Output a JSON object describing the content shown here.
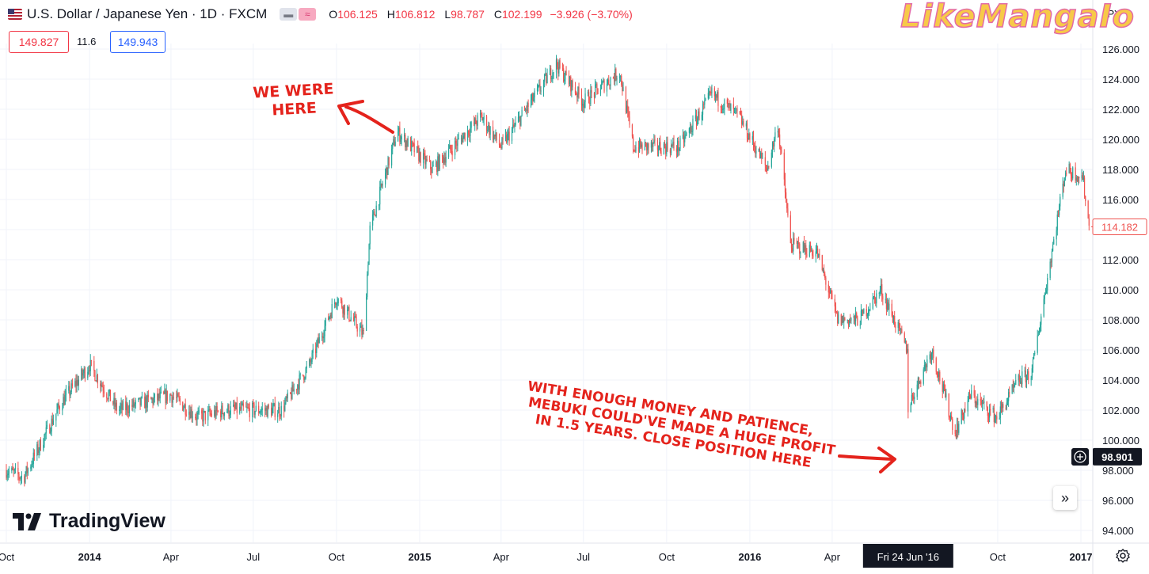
{
  "header": {
    "symbol": "U.S. Dollar / Japanese Yen · 1D · FXCM",
    "ohlc": {
      "o_label": "O",
      "o_value": "106.125",
      "h_label": "H",
      "h_value": "106.812",
      "l_label": "L",
      "l_value": "98.787",
      "c_label": "C",
      "c_value": "102.199",
      "change": "−3.926 (−3.70%)"
    },
    "currency": "JPY"
  },
  "trade": {
    "sell": "149.827",
    "spread": "11.6",
    "buy": "149.943"
  },
  "watermark": "LikeMangaIo",
  "logo": "TradingView",
  "annotations": {
    "top": [
      "WE WERE",
      "HERE"
    ],
    "bottom": [
      "With enough money and patience,",
      "Mebuki could've made a huge profit",
      "in 1.5 years. Close position here"
    ]
  },
  "chart_data": {
    "type": "candlestick",
    "y_axis_labels": [
      "126.000",
      "124.000",
      "122.000",
      "120.000",
      "118.000",
      "116.000",
      "114.000",
      "112.000",
      "110.000",
      "108.000",
      "106.000",
      "104.000",
      "102.000",
      "100.000",
      "98.000",
      "96.000",
      "94.000"
    ],
    "x_axis_labels": [
      "Oct",
      "2014",
      "Apr",
      "Jul",
      "Oct",
      "2015",
      "Apr",
      "Jul",
      "Oct",
      "2016",
      "Apr",
      "Fri 24 Jun '16",
      "Oct",
      "2017"
    ],
    "crosshair_date": "Fri 24 Jun '16",
    "crosshair_price": "98.901",
    "last_price": "114.182",
    "ylim": [
      94,
      126
    ],
    "trend": [
      [
        "2013-10-01",
        98.0
      ],
      [
        "2013-10-20",
        97.5
      ],
      [
        "2013-12-01",
        102.5
      ],
      [
        "2014-01-01",
        105.0
      ],
      [
        "2014-02-01",
        102.0
      ],
      [
        "2014-04-01",
        103.0
      ],
      [
        "2014-05-01",
        101.5
      ],
      [
        "2014-06-01",
        102.0
      ],
      [
        "2014-08-01",
        102.0
      ],
      [
        "2014-09-01",
        105.0
      ],
      [
        "2014-10-01",
        109.5
      ],
      [
        "2014-10-31",
        107.0
      ],
      [
        "2014-11-07",
        114.0
      ],
      [
        "2014-12-07",
        120.5
      ],
      [
        "2015-01-15",
        118.0
      ],
      [
        "2015-03-10",
        121.5
      ],
      [
        "2015-04-01",
        119.5
      ],
      [
        "2015-06-01",
        125.0
      ],
      [
        "2015-07-01",
        122.5
      ],
      [
        "2015-08-10",
        124.5
      ],
      [
        "2015-08-25",
        119.5
      ],
      [
        "2015-10-15",
        119.5
      ],
      [
        "2015-11-20",
        123.0
      ],
      [
        "2015-12-20",
        121.5
      ],
      [
        "2016-01-20",
        118.0
      ],
      [
        "2016-02-01",
        121.0
      ],
      [
        "2016-02-15",
        113.0
      ],
      [
        "2016-03-15",
        112.5
      ],
      [
        "2016-04-07",
        108.0
      ],
      [
        "2016-05-01",
        108.0
      ],
      [
        "2016-05-25",
        110.0
      ],
      [
        "2016-06-23",
        106.0
      ],
      [
        "2016-06-24",
        102.2
      ],
      [
        "2016-07-20",
        106.0
      ],
      [
        "2016-08-15",
        100.5
      ],
      [
        "2016-09-01",
        103.0
      ],
      [
        "2016-09-30",
        101.5
      ],
      [
        "2016-10-25",
        104.0
      ],
      [
        "2016-11-08",
        104.5
      ],
      [
        "2016-11-09",
        105.0
      ],
      [
        "2016-12-15",
        118.0
      ],
      [
        "2017-01-03",
        117.5
      ],
      [
        "2017-01-10",
        114.2
      ]
    ]
  },
  "colors": {
    "up": "#26a69a",
    "down": "#ef5350",
    "annotation": "#e4231c",
    "buy": "#2962ff",
    "sell": "#f23645"
  },
  "icons": [
    "us-flag-icon",
    "expand-icon",
    "plus-icon",
    "settings-icon",
    "tradingview-logo-icon"
  ]
}
